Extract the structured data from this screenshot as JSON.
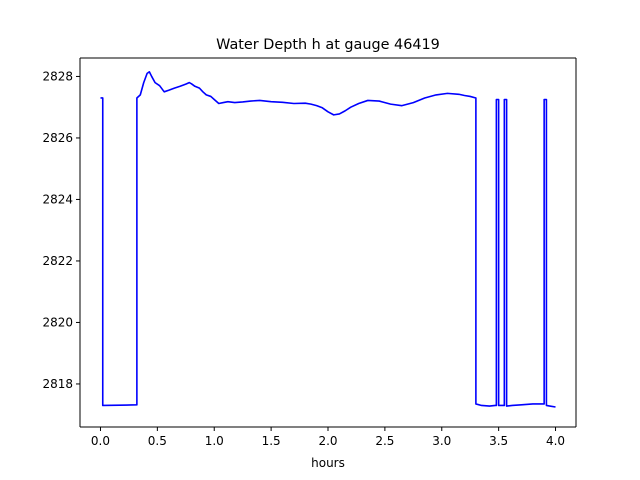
{
  "chart_data": {
    "type": "line",
    "title": "Water Depth h at gauge 46419",
    "xlabel": "hours",
    "ylabel": "",
    "xlim": [
      -0.18,
      4.18
    ],
    "ylim": [
      2816.6,
      2828.6
    ],
    "x_ticks": [
      0.0,
      0.5,
      1.0,
      1.5,
      2.0,
      2.5,
      3.0,
      3.5,
      4.0
    ],
    "x_tick_labels": [
      "0.0",
      "0.5",
      "1.0",
      "1.5",
      "2.0",
      "2.5",
      "3.0",
      "3.5",
      "4.0"
    ],
    "y_ticks": [
      2818,
      2820,
      2822,
      2824,
      2826,
      2828
    ],
    "y_tick_labels": [
      "2818",
      "2820",
      "2822",
      "2824",
      "2826",
      "2828"
    ],
    "grid": false,
    "legend": "none",
    "series": [
      {
        "color": "#0000ff",
        "x": [
          0.0,
          0.02,
          0.02,
          0.32,
          0.32,
          0.35,
          0.38,
          0.41,
          0.43,
          0.45,
          0.48,
          0.52,
          0.56,
          0.6,
          0.65,
          0.7,
          0.75,
          0.78,
          0.8,
          0.83,
          0.87,
          0.9,
          0.93,
          0.97,
          1.0,
          1.04,
          1.08,
          1.12,
          1.18,
          1.25,
          1.32,
          1.4,
          1.5,
          1.6,
          1.7,
          1.8,
          1.85,
          1.9,
          1.95,
          2.0,
          2.05,
          2.1,
          2.15,
          2.2,
          2.27,
          2.35,
          2.45,
          2.55,
          2.65,
          2.75,
          2.85,
          2.95,
          3.05,
          3.15,
          3.2,
          3.25,
          3.3,
          3.3,
          3.35,
          3.42,
          3.47,
          3.48,
          3.48,
          3.5,
          3.5,
          3.53,
          3.55,
          3.55,
          3.57,
          3.57,
          3.62,
          3.7,
          3.8,
          3.9,
          3.9,
          3.92,
          3.92,
          3.95,
          4.0
        ],
        "y": [
          2827.3,
          2827.3,
          2817.3,
          2817.32,
          2827.3,
          2827.4,
          2827.8,
          2828.1,
          2828.15,
          2828.0,
          2827.8,
          2827.7,
          2827.5,
          2827.55,
          2827.62,
          2827.68,
          2827.75,
          2827.8,
          2827.76,
          2827.68,
          2827.62,
          2827.5,
          2827.4,
          2827.35,
          2827.25,
          2827.12,
          2827.15,
          2827.18,
          2827.15,
          2827.17,
          2827.2,
          2827.22,
          2827.18,
          2827.16,
          2827.12,
          2827.13,
          2827.1,
          2827.05,
          2826.98,
          2826.85,
          2826.75,
          2826.78,
          2826.88,
          2827.0,
          2827.12,
          2827.22,
          2827.2,
          2827.1,
          2827.05,
          2827.15,
          2827.3,
          2827.4,
          2827.45,
          2827.42,
          2827.38,
          2827.35,
          2827.3,
          2817.35,
          2817.3,
          2817.28,
          2817.3,
          2817.3,
          2827.25,
          2827.25,
          2817.3,
          2817.3,
          2817.3,
          2827.25,
          2827.25,
          2817.28,
          2817.3,
          2817.32,
          2817.35,
          2817.35,
          2827.25,
          2827.25,
          2817.3,
          2817.28,
          2817.25
        ]
      }
    ]
  }
}
